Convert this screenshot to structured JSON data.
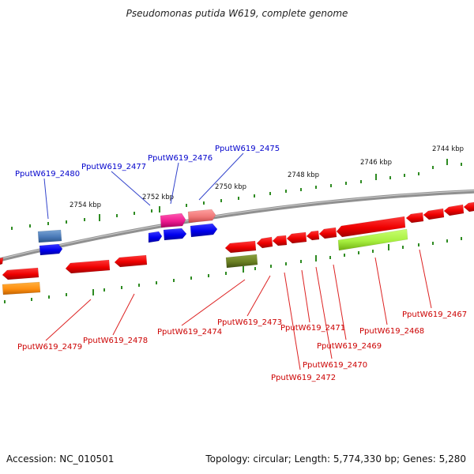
{
  "title": "Pseudomonas putida W619, complete genome",
  "accession": "Accession: NC_010501",
  "summary": "Topology: circular; Length: 5,774,330 bp; Genes: 5,280",
  "colors": {
    "backbone": "#808080",
    "tick": "#2e8b22",
    "label_forward": "#0000cc",
    "label_reverse": "#cc0000",
    "callout_forward": "#3344cc",
    "callout_reverse": "#dd2222"
  },
  "scale_labels": [
    "2744 kbp",
    "2746 kbp",
    "2748 kbp",
    "2750 kbp",
    "2752 kbp",
    "2754 kbp"
  ],
  "forward_genes": [
    "PputW619_2480",
    "PputW619_2477",
    "PputW619_2476",
    "PputW619_2475"
  ],
  "reverse_genes": [
    "PputW619_2479",
    "PputW619_2478",
    "PputW619_2474",
    "PputW619_2473",
    "PputW619_2472",
    "PputW619_2471",
    "PputW619_2470",
    "PputW619_2469",
    "PputW619_2468",
    "PputW619_2467"
  ]
}
